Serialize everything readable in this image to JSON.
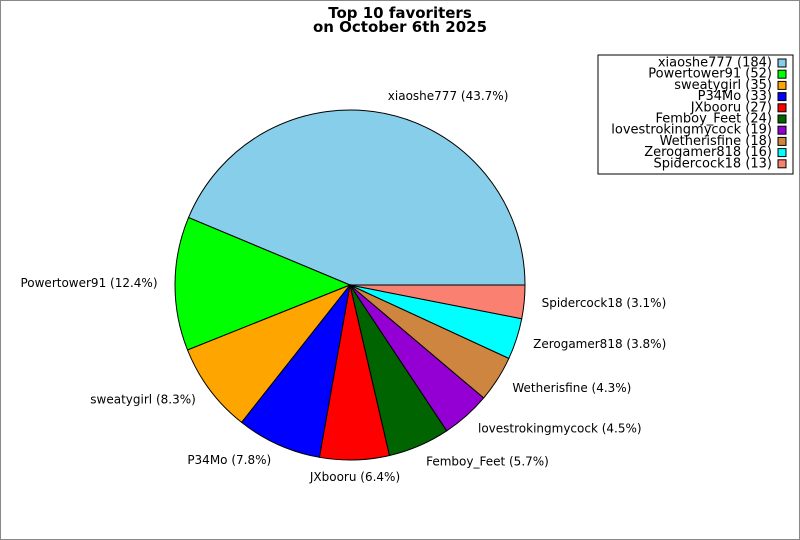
{
  "chart_data": {
    "type": "pie",
    "title": "Top 10 favoriters",
    "subtitle": "on October 6th 2025",
    "legend_placement": "top-right",
    "slices": [
      {
        "name": "xiaoshe777",
        "value": 184,
        "percent_label": "xiaoshe777 (43.7%)",
        "legend_label": "xiaoshe777 (184)",
        "color": "#87ceeb"
      },
      {
        "name": "Powertower91",
        "value": 52,
        "percent_label": "Powertower91 (12.4%)",
        "legend_label": "Powertower91 (52)",
        "color": "#00ff00"
      },
      {
        "name": "sweatygirl",
        "value": 35,
        "percent_label": "sweatygirl (8.3%)",
        "legend_label": "sweatygirl (35)",
        "color": "#ffa500"
      },
      {
        "name": "P34Mo",
        "value": 33,
        "percent_label": "P34Mo (7.8%)",
        "legend_label": "P34Mo (33)",
        "color": "#0000ff"
      },
      {
        "name": "JXbooru",
        "value": 27,
        "percent_label": "JXbooru (6.4%)",
        "legend_label": "JXbooru (27)",
        "color": "#ff0000"
      },
      {
        "name": "Femboy_Feet",
        "value": 24,
        "percent_label": "Femboy_Feet (5.7%)",
        "legend_label": "Femboy_Feet (24)",
        "color": "#006400"
      },
      {
        "name": "lovestrokingmycock",
        "value": 19,
        "percent_label": "lovestrokingmycock (4.5%)",
        "legend_label": "lovestrokingmycock (19)",
        "color": "#9400d3"
      },
      {
        "name": "Wetherisfine",
        "value": 18,
        "percent_label": "Wetherisfine (4.3%)",
        "legend_label": "Wetherisfine (18)",
        "color": "#cd853f"
      },
      {
        "name": "Zerogamer818",
        "value": 16,
        "percent_label": "Zerogamer818 (3.8%)",
        "legend_label": "Zerogamer818 (16)",
        "color": "#00ffff"
      },
      {
        "name": "Spidercock18",
        "value": 13,
        "percent_label": "Spidercock18 (3.1%)",
        "legend_label": "Spidercock18 (13)",
        "color": "#fa8072"
      }
    ]
  }
}
